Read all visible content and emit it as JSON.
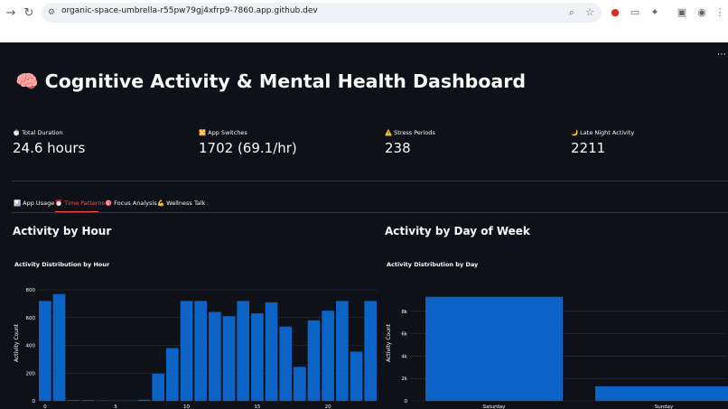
{
  "browser": {
    "url": "organic-space-umbrella-r55pw79gj4xfrp9-7860.app.github.dev",
    "icons": [
      "back-icon",
      "reload-icon",
      "site-info-icon",
      "zoom-icon",
      "bookmark-star-icon",
      "extension-icon",
      "extension-icon",
      "puzzle-icon",
      "screenshot-icon",
      "profile-icon"
    ]
  },
  "dashboard": {
    "emoji": "🧠",
    "title": "Cognitive Activity & Mental Health Dashboard"
  },
  "metrics": [
    {
      "emoji": "⏱️",
      "label": "Total Duration",
      "value": "24.6 hours"
    },
    {
      "emoji": "🔀",
      "label": "App Switches",
      "value": "1702 (69.1/hr)"
    },
    {
      "emoji": "⚠️",
      "label": "Stress Periods",
      "value": "238"
    },
    {
      "emoji": "🌙",
      "label": "Late Night Activity",
      "value": "2211"
    }
  ],
  "tabs": [
    {
      "emoji": "📊",
      "label": "App Usage"
    },
    {
      "emoji": "⏰",
      "label": "Time Patterns"
    },
    {
      "emoji": "🎯",
      "label": "Focus Analysis"
    },
    {
      "emoji": "💪",
      "label": "Wellness"
    },
    {
      "emoji": "",
      "label": "Talk"
    }
  ],
  "active_tab": "Time Patterns",
  "sections": {
    "hour": "Activity by Hour",
    "day": "Activity by Day of Week"
  },
  "chart_data": [
    {
      "type": "bar",
      "title": "Activity Distribution by Hour",
      "xlabel": "",
      "ylabel": "Activity Count",
      "x": [
        0,
        1,
        2,
        3,
        4,
        5,
        6,
        7,
        8,
        9,
        10,
        11,
        12,
        13,
        14,
        15,
        16,
        17,
        18,
        19,
        20,
        21,
        22,
        23
      ],
      "values": [
        720,
        770,
        5,
        5,
        3,
        2,
        2,
        8,
        195,
        380,
        720,
        720,
        640,
        610,
        720,
        630,
        710,
        535,
        245,
        580,
        650,
        720,
        355,
        720
      ],
      "yticks": [
        0,
        200,
        400,
        600,
        800
      ],
      "xticks": [
        "0",
        "5",
        "10",
        "15",
        "20"
      ],
      "ylim": [
        0,
        800
      ],
      "color": "#0b63c5",
      "grid": true
    },
    {
      "type": "bar",
      "title": "Activity Distribution by Day",
      "xlabel": "",
      "ylabel": "Activity Count",
      "categories": [
        "Saturday",
        "Sunday"
      ],
      "values": [
        9300,
        1300
      ],
      "yticks": [
        0,
        2000,
        4000,
        6000,
        8000
      ],
      "ytick_labels": [
        "0",
        "2k",
        "4k",
        "6k",
        "8k"
      ],
      "color": "#0b63c5",
      "grid": true
    }
  ]
}
